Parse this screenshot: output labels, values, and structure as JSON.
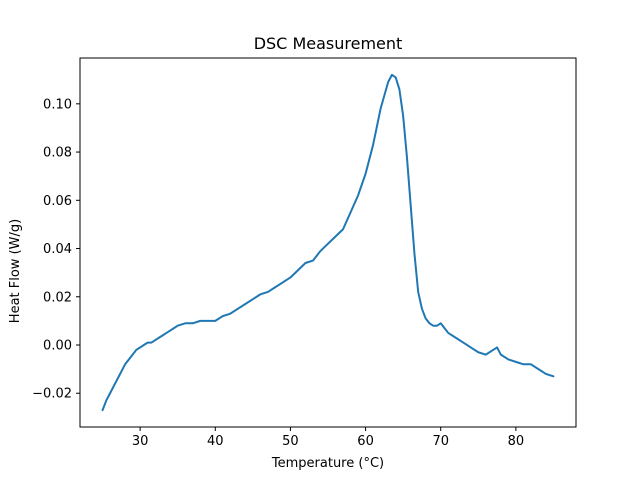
{
  "chart_data": {
    "type": "line",
    "title": "DSC Measurement",
    "xlabel": "Temperature (°C)",
    "ylabel": "Heat Flow (W/g)",
    "xlim": [
      22,
      88
    ],
    "ylim": [
      -0.034,
      0.119
    ],
    "xticks": [
      30,
      40,
      50,
      60,
      70,
      80
    ],
    "yticks": [
      -0.02,
      0.0,
      0.02,
      0.04,
      0.06,
      0.08,
      0.1
    ],
    "ytick_labels": [
      "−0.02",
      "0.00",
      "0.02",
      "0.04",
      "0.06",
      "0.08",
      "0.10"
    ],
    "grid": false,
    "line_color": "#1f77b4",
    "series": [
      {
        "x": [
          25.0,
          25.5,
          26.0,
          26.5,
          27.0,
          27.5,
          28.0,
          28.5,
          29.0,
          29.5,
          30.0,
          30.5,
          31.0,
          31.5,
          32.0,
          32.5,
          33.0,
          33.5,
          34.0,
          34.5,
          35.0,
          36.0,
          37.0,
          38.0,
          39.0,
          40.0,
          41.0,
          42.0,
          43.0,
          44.0,
          45.0,
          46.0,
          47.0,
          48.0,
          49.0,
          50.0,
          51.0,
          52.0,
          53.0,
          54.0,
          55.0,
          56.0,
          57.0,
          58.0,
          59.0,
          60.0,
          61.0,
          62.0,
          63.0,
          63.5,
          64.0,
          64.5,
          65.0,
          65.5,
          66.0,
          66.5,
          67.0,
          67.5,
          68.0,
          68.5,
          69.0,
          69.5,
          70.0,
          70.5,
          71.0,
          72.0,
          73.0,
          74.0,
          75.0,
          76.0,
          77.0,
          77.5,
          78.0,
          79.0,
          80.0,
          81.0,
          82.0,
          83.0,
          84.0,
          85.0
        ],
        "y": [
          -0.027,
          -0.023,
          -0.02,
          -0.017,
          -0.014,
          -0.011,
          -0.008,
          -0.006,
          -0.004,
          -0.002,
          -0.001,
          0.0,
          0.001,
          0.001,
          0.002,
          0.003,
          0.004,
          0.005,
          0.006,
          0.007,
          0.008,
          0.009,
          0.009,
          0.01,
          0.01,
          0.01,
          0.012,
          0.013,
          0.015,
          0.017,
          0.019,
          0.021,
          0.022,
          0.024,
          0.026,
          0.028,
          0.031,
          0.034,
          0.035,
          0.039,
          0.042,
          0.045,
          0.048,
          0.055,
          0.062,
          0.071,
          0.083,
          0.098,
          0.109,
          0.112,
          0.111,
          0.106,
          0.095,
          0.078,
          0.058,
          0.038,
          0.022,
          0.015,
          0.011,
          0.009,
          0.008,
          0.008,
          0.009,
          0.007,
          0.005,
          0.003,
          0.001,
          -0.001,
          -0.003,
          -0.004,
          -0.002,
          -0.001,
          -0.004,
          -0.006,
          -0.007,
          -0.008,
          -0.008,
          -0.01,
          -0.012,
          -0.013
        ]
      }
    ]
  }
}
